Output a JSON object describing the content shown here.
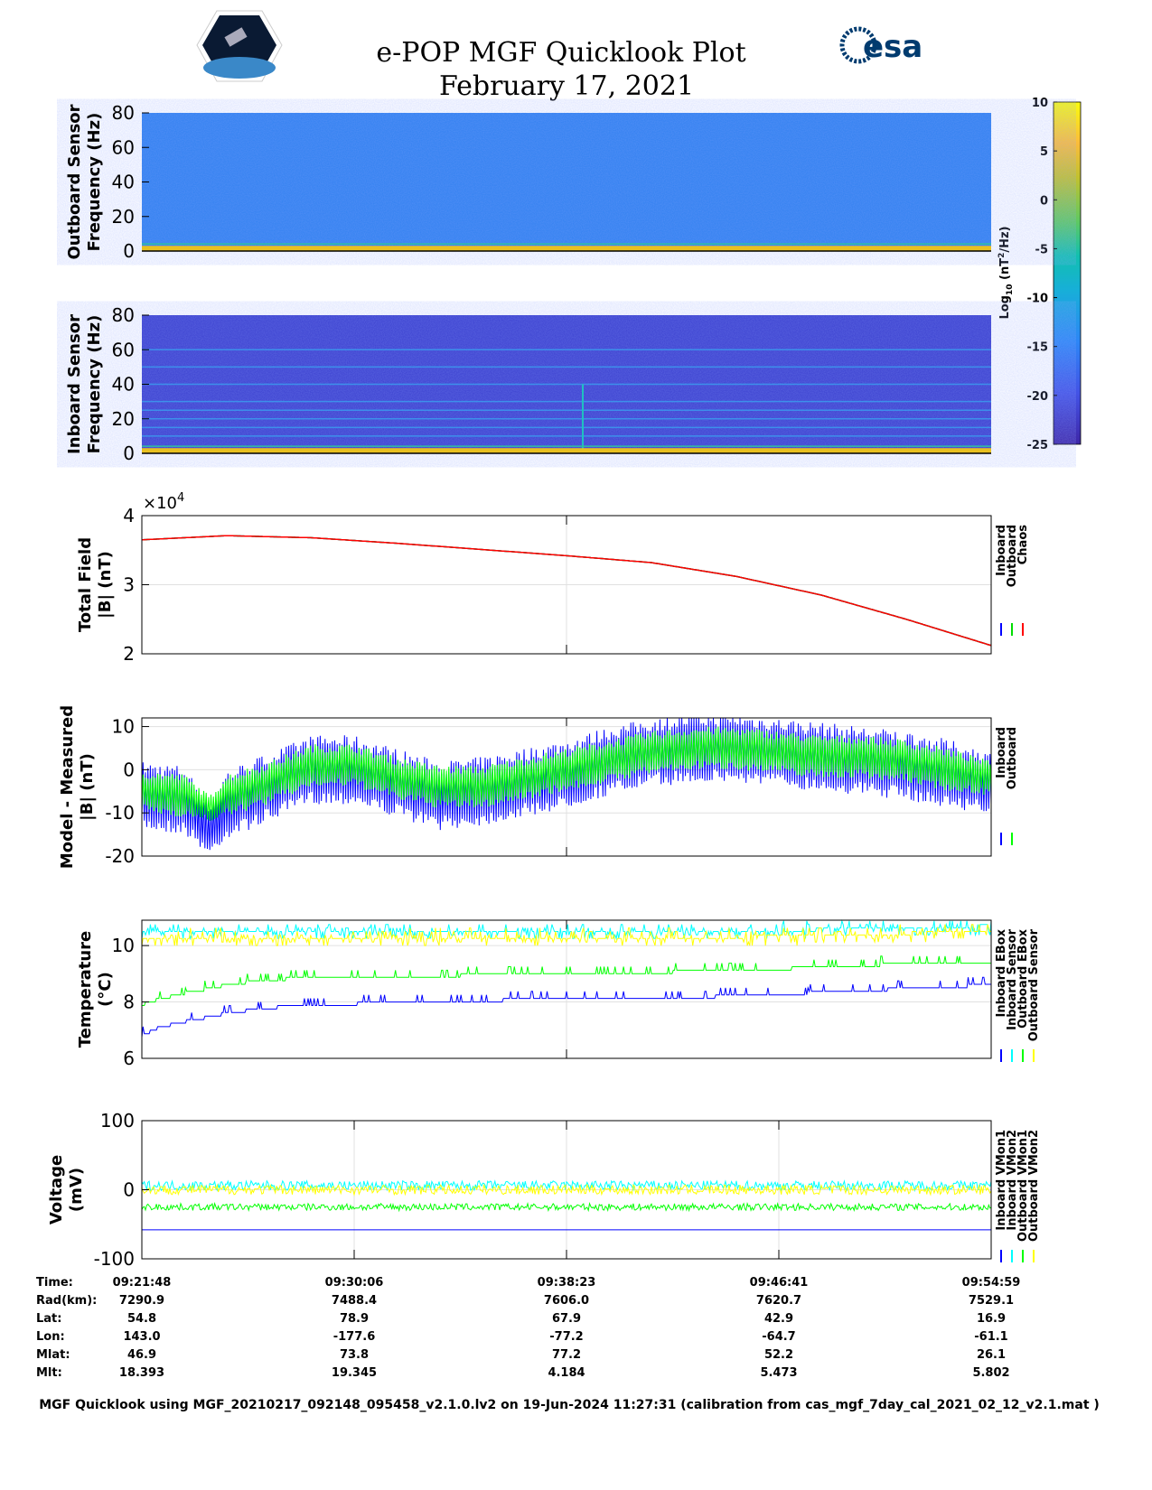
{
  "header": {
    "title": "e-POP MGF Quicklook Plot",
    "date": "February 17, 2021",
    "esa_logo": "esa",
    "cassiope_logo": "CASSIOPE"
  },
  "colorbar": {
    "label": "Log10 (nT^2/Hz)",
    "label_main": "Log",
    "label_sub": "10",
    "label_rest": " (nT",
    "label_sup": "2",
    "label_end": "/Hz)",
    "ticks": [
      "10",
      "5",
      "0",
      "-5",
      "-10",
      "-15",
      "-20",
      "-25"
    ],
    "range": [
      -25,
      10
    ]
  },
  "chart_data": [
    {
      "type": "heatmap",
      "title": "Outboard Sensor",
      "ylabel": "Outboard Sensor",
      "ylabel2": "Frequency (Hz)",
      "ylim": [
        0,
        80
      ],
      "yticks": [
        "80",
        "60",
        "40",
        "20",
        "0"
      ],
      "background_log_power": -18,
      "low_freq_band_log_power": 5
    },
    {
      "type": "heatmap",
      "title": "Inboard Sensor",
      "ylabel": "Inboard Sensor",
      "ylabel2": "Frequency (Hz)",
      "ylim": [
        0,
        80
      ],
      "yticks": [
        "80",
        "60",
        "40",
        "20",
        "0"
      ],
      "background_log_power": -23,
      "lines_hz": [
        10,
        15,
        20,
        25,
        30,
        40,
        50,
        60
      ],
      "low_freq_band_log_power": 5
    },
    {
      "type": "line",
      "ylabel": "Total Field",
      "ylabel2": "|B| (nT)",
      "ylim": [
        2,
        4
      ],
      "yticks": [
        "4",
        "3",
        "2"
      ],
      "exponent": "×10",
      "exponent_sup": "4",
      "x": [
        0,
        0.1,
        0.2,
        0.3,
        0.4,
        0.5,
        0.6,
        0.7,
        0.8,
        0.9,
        1.0
      ],
      "series": [
        {
          "name": "Inboard",
          "color": "#0000ff",
          "values": [
            3.65,
            3.71,
            3.68,
            3.6,
            3.51,
            3.42,
            3.32,
            3.12,
            2.85,
            2.5,
            2.12
          ]
        },
        {
          "name": "Outboard",
          "color": "#00dd00",
          "values": [
            3.65,
            3.71,
            3.68,
            3.6,
            3.51,
            3.42,
            3.32,
            3.12,
            2.85,
            2.5,
            2.12
          ]
        },
        {
          "name": "Chaos",
          "color": "#ff0000",
          "values": [
            3.65,
            3.71,
            3.68,
            3.6,
            3.51,
            3.42,
            3.32,
            3.12,
            2.85,
            2.5,
            2.12
          ]
        }
      ]
    },
    {
      "type": "line",
      "ylabel": "Model - Measured",
      "ylabel2": "|B| (nT)",
      "ylim": [
        -20,
        12
      ],
      "yticks": [
        "10",
        "0",
        "-10",
        "-20"
      ],
      "x": [
        0,
        0.05,
        0.08,
        0.1,
        0.15,
        0.2,
        0.25,
        0.3,
        0.35,
        0.4,
        0.45,
        0.5,
        0.55,
        0.6,
        0.65,
        0.7,
        0.75,
        0.8,
        0.85,
        0.9,
        0.95,
        1.0
      ],
      "series": [
        {
          "name": "Inboard",
          "color": "#0000ff",
          "center": [
            -6,
            -7,
            -14,
            -8,
            -4,
            0,
            0,
            -3,
            -6,
            -5,
            -3,
            -1,
            2,
            4,
            5,
            5,
            4,
            3,
            2,
            1,
            -1,
            -3
          ],
          "amplitude": [
            8,
            8,
            6,
            8,
            8,
            8,
            8,
            8,
            8,
            8,
            8,
            8,
            8,
            8,
            8,
            8,
            8,
            8,
            8,
            8,
            8,
            7
          ]
        },
        {
          "name": "Outboard",
          "color": "#00ff00",
          "center": [
            -5,
            -6,
            -9,
            -6,
            -3,
            1,
            1,
            -2,
            -4,
            -4,
            -2,
            0,
            2,
            4,
            5,
            5,
            4,
            3,
            3,
            2,
            0,
            -2
          ],
          "amplitude": [
            5,
            5,
            3,
            5,
            5,
            5,
            5,
            5,
            5,
            5,
            5,
            5,
            5,
            5,
            5,
            5,
            5,
            5,
            5,
            5,
            5,
            4
          ]
        }
      ]
    },
    {
      "type": "line",
      "ylabel": "Temperature",
      "ylabel2": "(°C)",
      "ylim": [
        6,
        10.9
      ],
      "yticks": [
        "10",
        "8",
        "6"
      ],
      "x": [
        0,
        0.02,
        0.05,
        0.1,
        0.15,
        0.3,
        0.5,
        0.7,
        0.85,
        1.0
      ],
      "series": [
        {
          "name": "Inboard EBox",
          "color": "#0000ff",
          "values": [
            6.8,
            7.1,
            7.3,
            7.6,
            7.8,
            8.0,
            8.1,
            8.2,
            8.4,
            8.6
          ]
        },
        {
          "name": "Inboard Sensor",
          "color": "#00ffff",
          "values": [
            10.5,
            10.5,
            10.5,
            10.5,
            10.5,
            10.5,
            10.5,
            10.5,
            10.6,
            10.7
          ]
        },
        {
          "name": "Outboard EBox",
          "color": "#00ff00",
          "values": [
            7.9,
            8.1,
            8.3,
            8.6,
            8.8,
            8.9,
            9.0,
            9.1,
            9.3,
            9.4
          ]
        },
        {
          "name": "Outboard Sensor",
          "color": "#ffff00",
          "values": [
            10.2,
            10.2,
            10.3,
            10.3,
            10.3,
            10.3,
            10.3,
            10.3,
            10.4,
            10.5
          ]
        }
      ]
    },
    {
      "type": "line",
      "ylabel": "Voltage",
      "ylabel2": "(mV)",
      "ylim": [
        -100,
        100
      ],
      "yticks": [
        "100",
        "0",
        "-100"
      ],
      "x": [
        0,
        1
      ],
      "series": [
        {
          "name": "Inboard VMon1",
          "color": "#0000ff",
          "values": [
            -58,
            -58
          ]
        },
        {
          "name": "Inboard VMon2",
          "color": "#00ffff",
          "values": [
            6,
            6
          ]
        },
        {
          "name": "Outboard VMon1",
          "color": "#00ff00",
          "values": [
            -25,
            -25
          ]
        },
        {
          "name": "Outboard VMon2",
          "color": "#ffff00",
          "values": [
            0,
            0
          ]
        }
      ]
    }
  ],
  "table": {
    "labels": [
      "Time:",
      "Rad(km):",
      "Lat:",
      "Lon:",
      "Mlat:",
      "Mlt:"
    ],
    "columns": [
      [
        "09:21:48",
        "7290.9",
        "54.8",
        "143.0",
        "46.9",
        "18.393"
      ],
      [
        "09:30:06",
        "7488.4",
        "78.9",
        "-177.6",
        "73.8",
        "19.345"
      ],
      [
        "09:38:23",
        "7606.0",
        "67.9",
        "-77.2",
        "77.2",
        "4.184"
      ],
      [
        "09:46:41",
        "7620.7",
        "42.9",
        "-64.7",
        "52.2",
        "5.473"
      ],
      [
        "09:54:59",
        "7529.1",
        "16.9",
        "-61.1",
        "26.1",
        "5.802"
      ]
    ]
  },
  "footer": "MGF Quicklook using MGF_20210217_092148_095458_v2.1.0.lv2 on 19-Jun-2024 11:27:31 (calibration from cas_mgf_7day_cal_2021_02_12_v2.1.mat )"
}
